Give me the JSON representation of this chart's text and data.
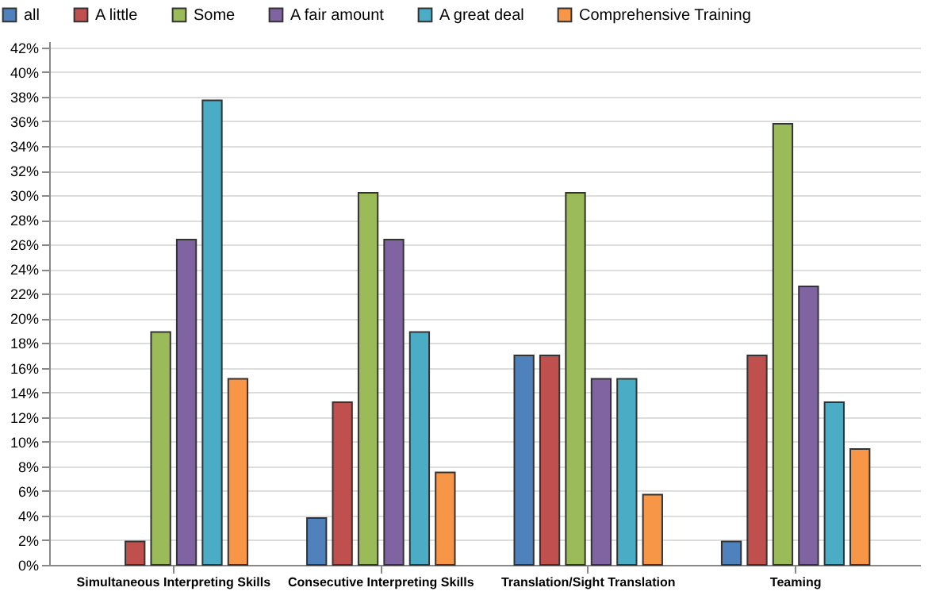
{
  "chart_data": {
    "type": "bar",
    "categories": [
      "Simultaneous Interpreting Skills",
      "Consecutive Interpreting Skills",
      "Translation/Sight Translation",
      "Teaming"
    ],
    "series": [
      {
        "name": "all",
        "color": "#4f81bd",
        "values": [
          null,
          3.8,
          17.0,
          1.9
        ]
      },
      {
        "name": "A little",
        "color": "#c0504d",
        "values": [
          1.9,
          13.2,
          17.0,
          17.0
        ]
      },
      {
        "name": "Some",
        "color": "#9bbb59",
        "values": [
          18.9,
          30.2,
          30.2,
          35.8
        ]
      },
      {
        "name": "A fair amount",
        "color": "#8064a2",
        "values": [
          26.4,
          26.4,
          15.1,
          22.6
        ]
      },
      {
        "name": "A great deal",
        "color": "#4bacc6",
        "values": [
          37.7,
          18.9,
          15.1,
          13.2
        ]
      },
      {
        "name": "Comprehensive Training",
        "color": "#f79646",
        "values": [
          15.1,
          7.5,
          5.7,
          9.4
        ]
      }
    ],
    "ylim": [
      0,
      42.5
    ],
    "yticks": [
      {
        "value": 0,
        "label": "0%"
      },
      {
        "value": 2,
        "label": "2%"
      },
      {
        "value": 4,
        "label": "4%"
      },
      {
        "value": 6,
        "label": "6%"
      },
      {
        "value": 8,
        "label": "8%"
      },
      {
        "value": 10,
        "label": "10%"
      },
      {
        "value": 12,
        "label": "12%"
      },
      {
        "value": 14,
        "label": "14%"
      },
      {
        "value": 16,
        "label": "16%"
      },
      {
        "value": 18,
        "label": "18%"
      },
      {
        "value": 20,
        "label": "20%"
      },
      {
        "value": 22,
        "label": "22%"
      },
      {
        "value": 24,
        "label": "24%"
      },
      {
        "value": 26,
        "label": "26%"
      },
      {
        "value": 28,
        "label": "28%"
      },
      {
        "value": 30,
        "label": "30%"
      },
      {
        "value": 32,
        "label": "32%"
      },
      {
        "value": 34,
        "label": "34%"
      },
      {
        "value": 36,
        "label": "36%"
      },
      {
        "value": 38,
        "label": "38%"
      },
      {
        "value": 40,
        "label": "40%"
      },
      {
        "value": 42,
        "label": "42%"
      }
    ],
    "grid": "y",
    "legend": "top left"
  }
}
